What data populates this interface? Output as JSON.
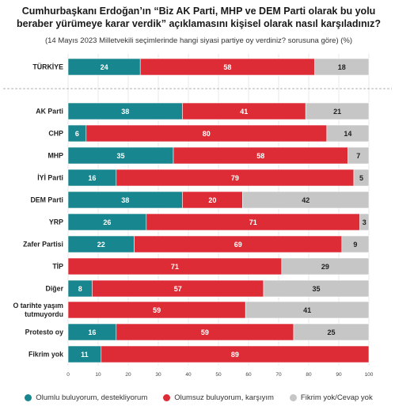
{
  "chart_data": {
    "type": "bar",
    "stacked": true,
    "orientation": "horizontal",
    "title": "Cumhurbaşkanı Erdoğan’ın “Biz AK Parti, MHP ve DEM Parti olarak bu yolu beraber yürümeye karar verdik” açıklamasını kişisel olarak nasıl karşıladınız?",
    "subtitle": "(14 Mayıs 2023 Milletvekili seçimlerinde hangi siyasi partiye oy verdiniz? sorusuna göre) (%)",
    "categories": [
      "TÜRKİYE",
      "AK Parti",
      "CHP",
      "MHP",
      "İYİ Parti",
      "DEM Parti",
      "YRP",
      "Zafer Partisi",
      "TİP",
      "Diğer",
      "O tarihte yaşım tutmuyordu",
      "Protesto oy",
      "Fikrim yok"
    ],
    "category_lines": [
      [
        "TÜRKİYE"
      ],
      [
        "AK Parti"
      ],
      [
        "CHP"
      ],
      [
        "MHP"
      ],
      [
        "İYİ Parti"
      ],
      [
        "DEM Parti"
      ],
      [
        "YRP"
      ],
      [
        "Zafer Partisi"
      ],
      [
        "TİP"
      ],
      [
        "Diğer"
      ],
      [
        "O tarihte yaşım",
        "tutmuyordu"
      ],
      [
        "Protesto oy"
      ],
      [
        "Fikrim yok"
      ]
    ],
    "series": [
      {
        "name": "Olumlu buluyorum, destekliyorum",
        "color": "#17868f",
        "values": [
          24,
          38,
          6,
          35,
          16,
          38,
          26,
          22,
          0,
          8,
          0,
          16,
          11
        ]
      },
      {
        "name": "Olumsuz buluyorum, karşıyım",
        "color": "#dd2c35",
        "values": [
          58,
          41,
          80,
          58,
          79,
          20,
          71,
          69,
          71,
          57,
          59,
          59,
          89
        ]
      },
      {
        "name": "Fikrim yok/Cevap yok",
        "color": "#c6c6c6",
        "values": [
          18,
          21,
          14,
          7,
          5,
          42,
          3,
          9,
          29,
          35,
          41,
          25,
          0
        ]
      }
    ],
    "xlim": [
      0,
      100
    ],
    "xticks": [
      0,
      10,
      20,
      30,
      40,
      50,
      60,
      70,
      80,
      90,
      100
    ],
    "grid": true,
    "legend_position": "bottom"
  }
}
